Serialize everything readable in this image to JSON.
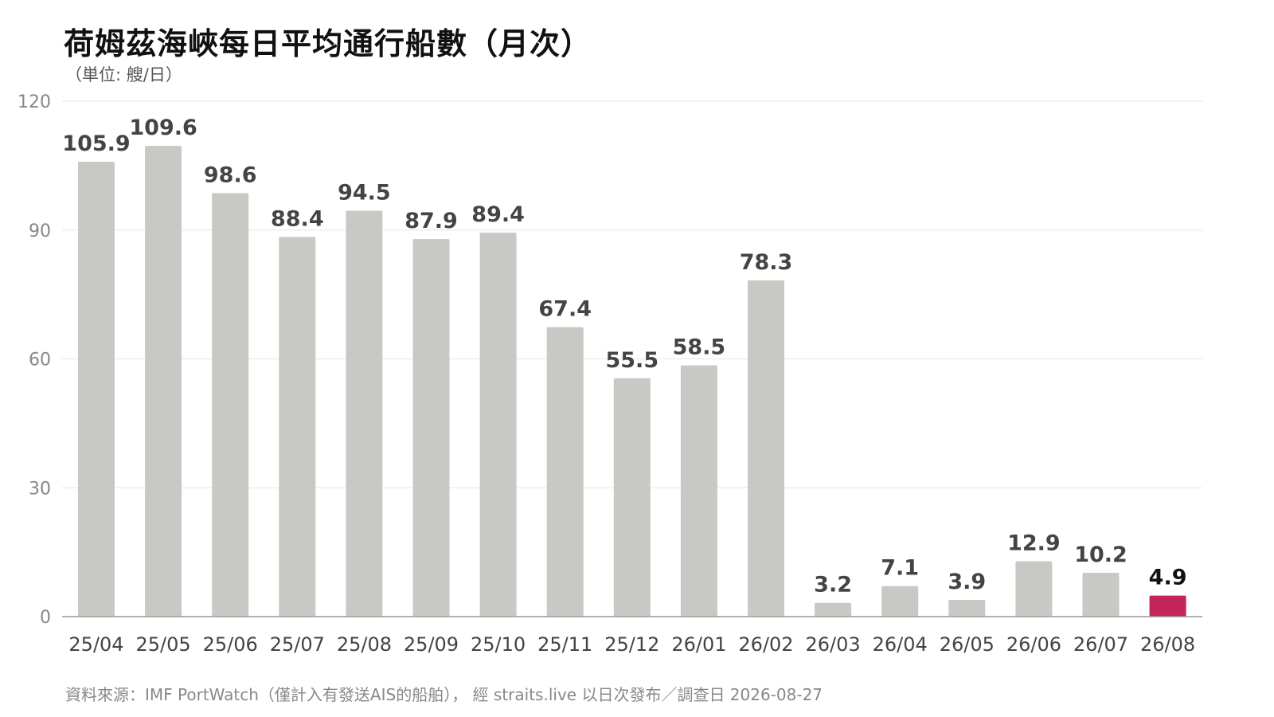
{
  "title": "荷姆茲海峽每日平均通行船數（月次）",
  "subtitle": "（単位: 艘/日）",
  "source": "資料來源：IMF PortWatch（僅計入有發送AIS的船舶）， 經 straits.live 以日次發布／調查日 2026-08-27",
  "colors": {
    "bar": "#c8c8c4",
    "highlight": "#c2255c",
    "grid": "#e6e6e6",
    "axis": "#999999",
    "tick_text": "#888888",
    "label_text": "#444444",
    "highlight_label_text": "#111111"
  },
  "chart_data": {
    "type": "bar",
    "title": "荷姆茲海峽每日平均通行船數（月次）",
    "ylabel": "（単位: 艘/日）",
    "xlabel": "",
    "categories": [
      "25/04",
      "25/05",
      "25/06",
      "25/07",
      "25/08",
      "25/09",
      "25/10",
      "25/11",
      "25/12",
      "26/01",
      "26/02",
      "26/03",
      "26/04",
      "26/05",
      "26/06",
      "26/07",
      "26/08"
    ],
    "values": [
      105.9,
      109.6,
      98.6,
      88.4,
      94.5,
      87.9,
      89.4,
      67.4,
      55.5,
      58.5,
      78.3,
      3.2,
      7.1,
      3.9,
      12.9,
      10.2,
      4.9
    ],
    "value_labels": [
      "105.9",
      "109.6",
      "98.6",
      "88.4",
      "94.5",
      "87.9",
      "89.4",
      "67.4",
      "55.5",
      "58.5",
      "78.3",
      "3.2",
      "7.1",
      "3.9",
      "12.9",
      "10.2",
      "4.9"
    ],
    "highlight_index": 16,
    "ylim": [
      0,
      120
    ],
    "yticks": [
      0,
      30,
      60,
      90,
      120
    ],
    "grid": true,
    "legend": "none"
  }
}
